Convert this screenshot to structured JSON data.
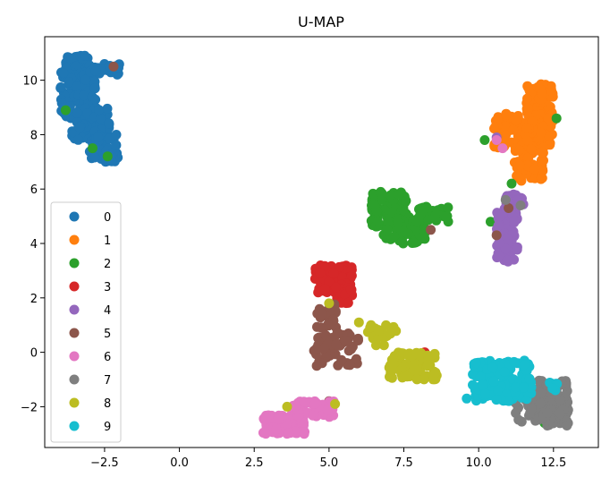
{
  "chart_data": {
    "type": "scatter",
    "title": "U-MAP",
    "xlabel": "",
    "ylabel": "",
    "xlim": [
      -4.5,
      14.0
    ],
    "ylim": [
      -3.5,
      11.6
    ],
    "xticks": [
      -2.5,
      0.0,
      2.5,
      5.0,
      7.5,
      10.0,
      12.5
    ],
    "xtick_labels": [
      "−2.5",
      "0.0",
      "2.5",
      "5.0",
      "7.5",
      "10.0",
      "12.5"
    ],
    "yticks": [
      -2,
      0,
      2,
      4,
      6,
      8,
      10
    ],
    "ytick_labels": [
      "−2",
      "0",
      "2",
      "4",
      "6",
      "8",
      "10"
    ],
    "grid": false,
    "legend_position": "lower-left",
    "series": [
      {
        "name": "0",
        "color": "#1f77b4",
        "clusters": [
          {
            "x": [
              -3.8,
              -3.0
            ],
            "y": [
              10.2,
              10.9
            ],
            "n": 60
          },
          {
            "x": [
              -4.0,
              -2.8
            ],
            "y": [
              8.6,
              10.3
            ],
            "n": 110
          },
          {
            "x": [
              -3.6,
              -2.3
            ],
            "y": [
              7.8,
              9.0
            ],
            "n": 70
          },
          {
            "x": [
              -3.0,
              -2.0
            ],
            "y": [
              7.0,
              8.0
            ],
            "n": 40
          },
          {
            "x": [
              -3.0,
              -2.0
            ],
            "y": [
              10.2,
              10.6
            ],
            "n": 25
          }
        ]
      },
      {
        "name": "1",
        "color": "#ff7f0e",
        "clusters": [
          {
            "x": [
              11.6,
              12.5
            ],
            "y": [
              8.5,
              9.9
            ],
            "n": 80
          },
          {
            "x": [
              10.5,
              12.5
            ],
            "y": [
              7.5,
              8.8
            ],
            "n": 120
          },
          {
            "x": [
              11.2,
              12.2
            ],
            "y": [
              6.3,
              7.6
            ],
            "n": 60
          }
        ]
      },
      {
        "name": "2",
        "color": "#2ca02c",
        "clusters": [
          {
            "x": [
              6.4,
              7.6
            ],
            "y": [
              4.6,
              5.9
            ],
            "n": 100
          },
          {
            "x": [
              6.8,
              8.2
            ],
            "y": [
              4.0,
              5.0
            ],
            "n": 60
          },
          {
            "x": [
              7.8,
              9.0
            ],
            "y": [
              4.8,
              5.4
            ],
            "n": 40
          }
        ],
        "outliers": [
          [
            -3.8,
            8.9
          ],
          [
            -2.9,
            7.5
          ],
          [
            -2.4,
            7.2
          ],
          [
            10.2,
            7.8
          ],
          [
            12.6,
            8.6
          ],
          [
            10.4,
            4.8
          ],
          [
            11.1,
            6.2
          ],
          [
            12.2,
            -2.6
          ]
        ]
      },
      {
        "name": "3",
        "color": "#d62728",
        "clusters": [
          {
            "x": [
              4.5,
              5.8
            ],
            "y": [
              2.2,
              3.2
            ],
            "n": 90
          },
          {
            "x": [
              5.2,
              5.8
            ],
            "y": [
              1.8,
              2.4
            ],
            "n": 20
          }
        ],
        "outliers": [
          [
            8.2,
            0.0
          ]
        ]
      },
      {
        "name": "4",
        "color": "#9467bd",
        "clusters": [
          {
            "x": [
              10.6,
              11.3
            ],
            "y": [
              3.3,
              5.4
            ],
            "n": 80
          },
          {
            "x": [
              10.9,
              11.5
            ],
            "y": [
              5.4,
              5.8
            ],
            "n": 20
          }
        ],
        "outliers": [
          [
            10.6,
            7.9
          ]
        ]
      },
      {
        "name": "5",
        "color": "#8c564b",
        "clusters": [
          {
            "x": [
              4.6,
              5.3
            ],
            "y": [
              0.8,
              1.8
            ],
            "n": 30
          },
          {
            "x": [
              4.5,
              6.0
            ],
            "y": [
              -0.5,
              0.7
            ],
            "n": 60
          }
        ],
        "outliers": [
          [
            -2.2,
            10.5
          ],
          [
            8.4,
            4.5
          ],
          [
            10.6,
            4.3
          ],
          [
            11.0,
            5.3
          ],
          [
            4.7,
            -2.0
          ],
          [
            5.0,
            -1.8
          ]
        ]
      },
      {
        "name": "6",
        "color": "#e377c2",
        "clusters": [
          {
            "x": [
              2.8,
              4.2
            ],
            "y": [
              -3.0,
              -2.3
            ],
            "n": 100
          },
          {
            "x": [
              3.8,
              5.2
            ],
            "y": [
              -2.4,
              -1.8
            ],
            "n": 40
          }
        ],
        "outliers": [
          [
            10.6,
            7.8
          ],
          [
            10.8,
            7.5
          ]
        ]
      },
      {
        "name": "7",
        "color": "#7f7f7f",
        "clusters": [
          {
            "x": [
              11.2,
              13.0
            ],
            "y": [
              -2.7,
              -1.0
            ],
            "n": 150
          }
        ],
        "outliers": [
          [
            10.9,
            5.6
          ],
          [
            11.4,
            5.4
          ]
        ]
      },
      {
        "name": "8",
        "color": "#bcbd22",
        "clusters": [
          {
            "x": [
              7.0,
              8.6
            ],
            "y": [
              -1.0,
              0.0
            ],
            "n": 90
          },
          {
            "x": [
              6.2,
              7.3
            ],
            "y": [
              0.2,
              1.0
            ],
            "n": 20
          }
        ],
        "outliers": [
          [
            6.0,
            1.1
          ],
          [
            5.0,
            1.8
          ],
          [
            3.6,
            -2.0
          ],
          [
            5.2,
            -1.9
          ]
        ]
      },
      {
        "name": "9",
        "color": "#17becf",
        "clusters": [
          {
            "x": [
              9.8,
              11.8
            ],
            "y": [
              -1.8,
              -0.3
            ],
            "n": 140
          },
          {
            "x": [
              12.3,
              12.7
            ],
            "y": [
              -1.5,
              -1.1
            ],
            "n": 8
          }
        ],
        "outliers": [
          [
            9.6,
            -1.7
          ],
          [
            9.8,
            -1.2
          ]
        ]
      }
    ]
  }
}
